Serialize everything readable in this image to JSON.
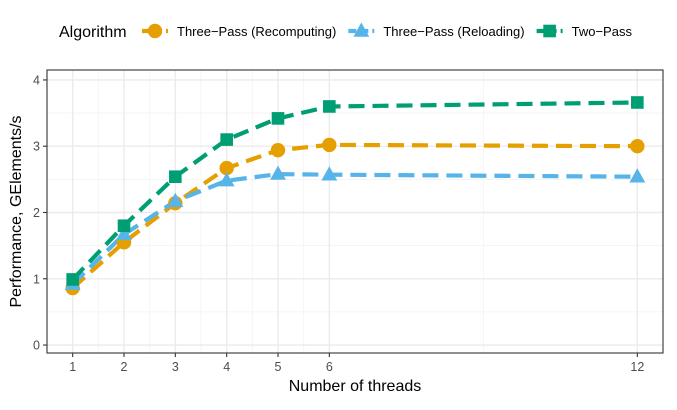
{
  "chart_data": {
    "type": "line",
    "xlabel": "Number of threads",
    "ylabel": "Performance, GElements/s",
    "x_ticks": [
      1,
      2,
      3,
      4,
      5,
      6,
      12
    ],
    "x_minor_gridlines": [
      1.5,
      2.5,
      3.5,
      4.5,
      5.5,
      9
    ],
    "xlim": [
      0.5,
      12.5
    ],
    "y_ticks": [
      0,
      1,
      2,
      3,
      4
    ],
    "ylim": [
      -0.12,
      4.15
    ],
    "grid": true,
    "legend": {
      "title": "Algorithm",
      "placement": "top"
    },
    "series": [
      {
        "name": "Three−Pass (Recomputing)",
        "color": "#E69F00",
        "marker": "circle",
        "x": [
          1,
          2,
          3,
          4,
          5,
          6,
          12
        ],
        "y": [
          0.86,
          1.55,
          2.14,
          2.67,
          2.94,
          3.02,
          3.0
        ]
      },
      {
        "name": "Three−Pass (Reloading)",
        "color": "#56B4E9",
        "marker": "triangle",
        "x": [
          1,
          2,
          3,
          4,
          5,
          6,
          12
        ],
        "y": [
          0.92,
          1.67,
          2.17,
          2.48,
          2.58,
          2.57,
          2.54
        ]
      },
      {
        "name": "Two−Pass",
        "color": "#009E73",
        "marker": "square",
        "x": [
          1,
          2,
          3,
          4,
          5,
          6,
          12
        ],
        "y": [
          0.99,
          1.8,
          2.54,
          3.1,
          3.42,
          3.6,
          3.66
        ]
      }
    ]
  }
}
